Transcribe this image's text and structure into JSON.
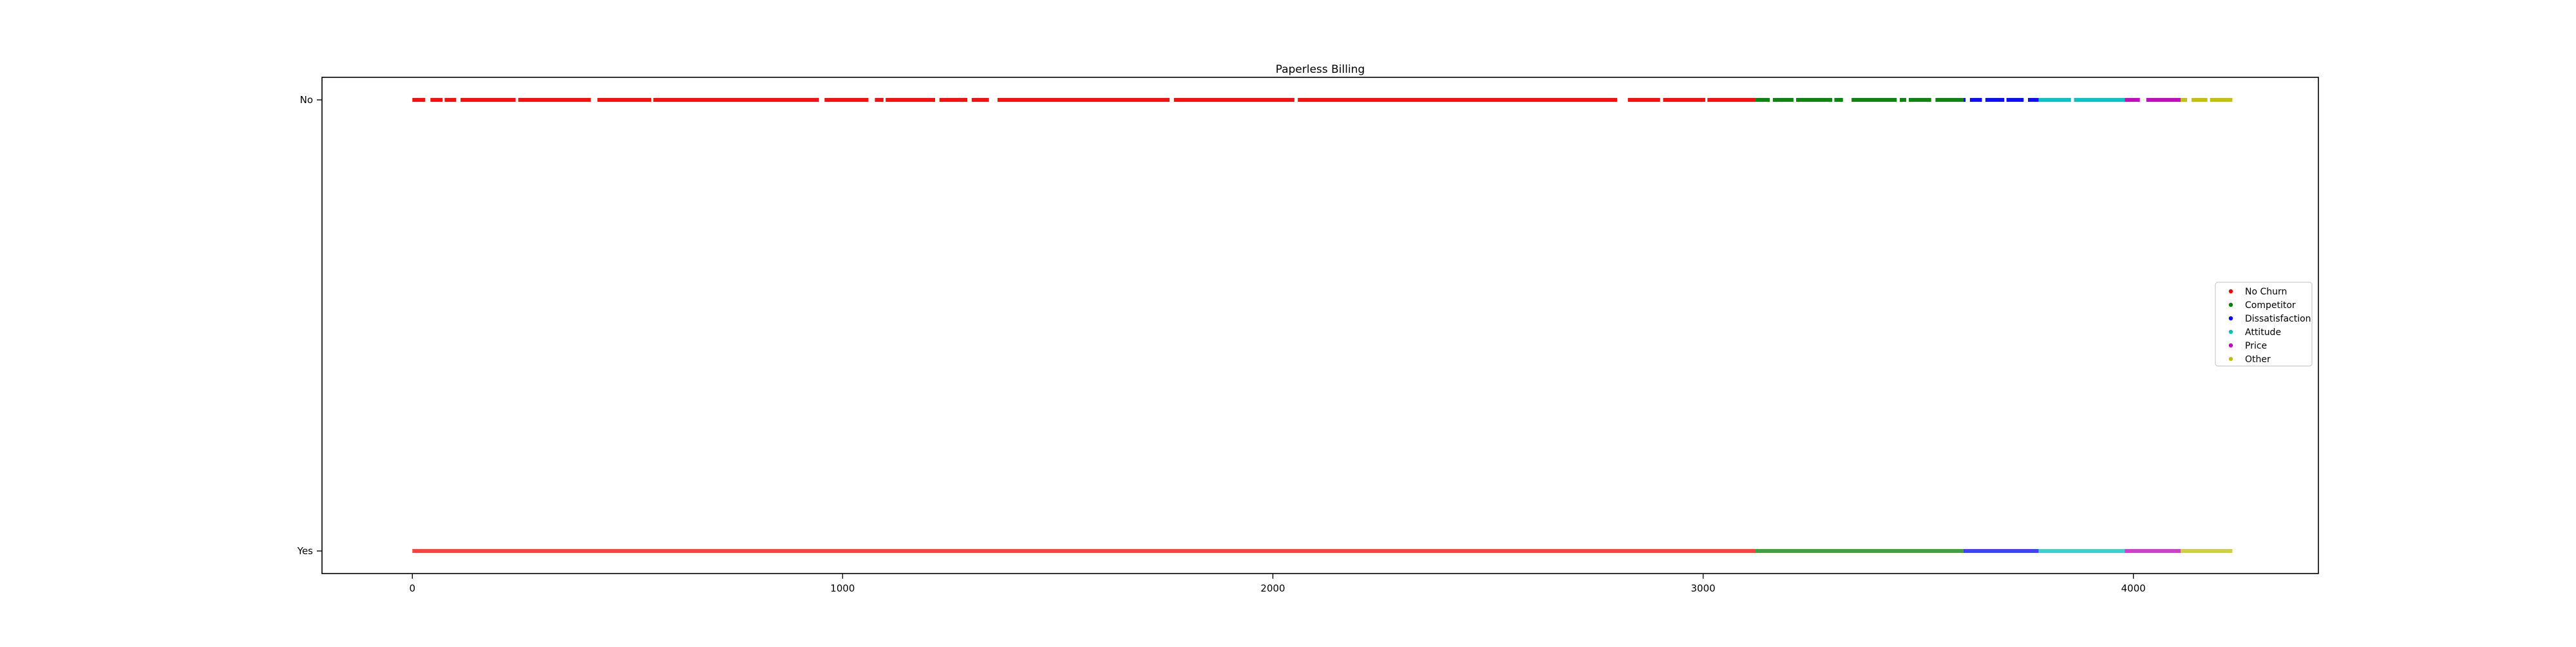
{
  "chart_data": {
    "type": "scatter",
    "title": "Paperless Billing",
    "xlabel": "",
    "ylabel": "",
    "xlim": [
      -210,
      4430
    ],
    "x_ticks": [
      0,
      1000,
      2000,
      3000,
      4000
    ],
    "y_categories": [
      "Yes",
      "No"
    ],
    "grid": false,
    "legend_position": "center-right",
    "series": [
      {
        "name": "No Churn",
        "color": "#ff0000",
        "x_range": [
          0,
          3121
        ],
        "values": {
          "No": {
            "density": 0.6,
            "gaps": [
              [
                30,
                42
              ],
              [
                70,
                75
              ],
              [
                102,
                112
              ],
              [
                240,
                246
              ],
              [
                415,
                430
              ],
              [
                555,
                560
              ],
              [
                945,
                958
              ],
              [
                1060,
                1075
              ],
              [
                1095,
                1100
              ],
              [
                1215,
                1225
              ],
              [
                1290,
                1300
              ],
              [
                1340,
                1360
              ],
              [
                1760,
                1770
              ],
              [
                2050,
                2058
              ],
              [
                2800,
                2825
              ],
              [
                2900,
                2907
              ],
              [
                3005,
                3010
              ]
            ]
          },
          "Yes": {
            "density": 0.4,
            "gaps": []
          }
        }
      },
      {
        "name": "Competitor",
        "color": "#008000",
        "x_range": [
          3121,
          3605
        ],
        "values": {
          "No": {
            "density": 0.6,
            "gaps": [
              [
                3155,
                3162
              ],
              [
                3210,
                3216
              ],
              [
                3300,
                3305
              ],
              [
                3325,
                3345
              ],
              [
                3450,
                3457
              ],
              [
                3472,
                3478
              ],
              [
                3530,
                3540
              ]
            ]
          },
          "Yes": {
            "density": 0.4,
            "gaps": []
          }
        }
      },
      {
        "name": "Dissatisfaction",
        "color": "#0000ff",
        "x_range": [
          3605,
          3780
        ],
        "values": {
          "No": {
            "density": 0.6,
            "gaps": [
              [
                3610,
                3620
              ],
              [
                3648,
                3656
              ],
              [
                3700,
                3705
              ],
              [
                3745,
                3755
              ]
            ]
          },
          "Yes": {
            "density": 0.4,
            "gaps": []
          }
        }
      },
      {
        "name": "Attitude",
        "color": "#00bfbf",
        "x_range": [
          3780,
          3980
        ],
        "values": {
          "No": {
            "density": 0.6,
            "gaps": [
              [
                3855,
                3862
              ]
            ]
          },
          "Yes": {
            "density": 0.4,
            "gaps": []
          }
        }
      },
      {
        "name": "Price",
        "color": "#bf00bf",
        "x_range": [
          3980,
          4110
        ],
        "values": {
          "No": {
            "density": 0.6,
            "gaps": [
              [
                4015,
                4030
              ]
            ]
          },
          "Yes": {
            "density": 0.4,
            "gaps": []
          }
        }
      },
      {
        "name": "Other",
        "color": "#bfbf00",
        "x_range": [
          4110,
          4230
        ],
        "values": {
          "No": {
            "density": 0.6,
            "gaps": [
              [
                4125,
                4135
              ],
              [
                4172,
                4178
              ]
            ]
          },
          "Yes": {
            "density": 0.4,
            "gaps": []
          }
        }
      }
    ]
  }
}
